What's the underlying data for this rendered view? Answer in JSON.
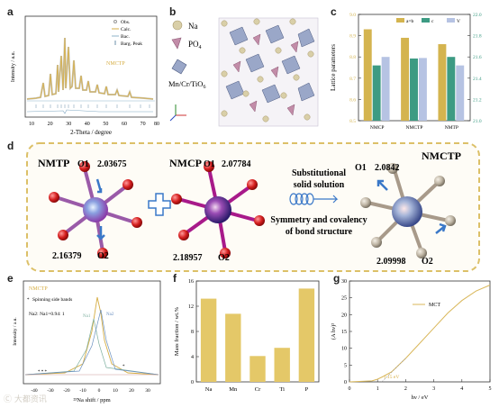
{
  "panels": {
    "a": "a",
    "b": "b",
    "c": "c",
    "d": "d",
    "e": "e",
    "f": "f",
    "g": "g"
  },
  "watermark": "Ⓒ 大都资讯",
  "panel_a": {
    "ylabel": "Intensity / a.u.",
    "xlabel": "2-Theta / degree",
    "legend": [
      "Obs.",
      "Calc.",
      "Bac.",
      "Barg. Peak"
    ],
    "sample": "NMCTP",
    "xticks": [
      "10",
      "20",
      "30",
      "40",
      "50",
      "60",
      "70",
      "80"
    ]
  },
  "panel_b": {
    "legend": [
      {
        "label": "Na",
        "sub": ""
      },
      {
        "label": "PO",
        "sub": "4"
      },
      {
        "label": "Mn/Cr/TiO",
        "sub": "6"
      }
    ]
  },
  "panel_c": {
    "ylabel": "Lattice parameters",
    "legend": [
      "a=b",
      "c",
      "V"
    ],
    "colors": {
      "ab": "#d4b44f",
      "c": "#3d9b83",
      "V": "#b6c3e3"
    }
  },
  "panel_d": {
    "nmtp": {
      "title": "NMTP",
      "o1": "O1",
      "o1_val": "2.03675",
      "o2": "O2",
      "o2_val": "2.16379"
    },
    "nmcp": {
      "title": "NMCP",
      "o1": "O1",
      "o1_val": "2.07784",
      "o2": "O2",
      "o2_val": "2.18957"
    },
    "nmctp": {
      "title": "NMCTP",
      "o1": "O1",
      "o1_val": "2.0842",
      "o2": "O2",
      "o2_val": "2.09998"
    },
    "text1": "Substitutional",
    "text2": "solid solution",
    "text3": "Symmetry and covalency",
    "text4": "of bond structure"
  },
  "panel_e": {
    "sample": "NMCTP",
    "note1": "Spinning side bands",
    "note2": "Na2: Na1=0.94: 1",
    "na1": "Na1",
    "na2": "Na2",
    "ylabel": "Intensity / a.u.",
    "xlabel": "²³Na shift / ppm",
    "xticks": [
      "-40",
      "-30",
      "-20",
      "-10",
      "0",
      "10",
      "20",
      "30"
    ]
  },
  "chart_data": [
    {
      "type": "bar",
      "panel": "c",
      "title": "",
      "xlabel": "",
      "ylabel": "Lattice parameters",
      "categories": [
        "NMCP",
        "NMCTP",
        "NMTP"
      ],
      "series": [
        {
          "name": "a=b",
          "axis": "left",
          "values": [
            8.93,
            8.89,
            8.86
          ]
        },
        {
          "name": "c",
          "axis": "right",
          "values": [
            21.52,
            21.585,
            21.6
          ]
        },
        {
          "name": "V",
          "axis": "right",
          "values": [
            21.6,
            21.59,
            21.52
          ]
        }
      ],
      "ylim": [
        8.5,
        9.0
      ],
      "y2lim": [
        21.0,
        22.0
      ],
      "yticks": [
        "8.5",
        "8.6",
        "8.7",
        "8.8",
        "8.9",
        "9.0"
      ],
      "y2ticks": [
        "21.0",
        "21.2",
        "21.4",
        "21.6",
        "21.8",
        "22.0"
      ],
      "legend_position": "top"
    },
    {
      "type": "bar",
      "panel": "f",
      "title": "",
      "xlabel": "",
      "ylabel": "Mass fraction / wt.%",
      "categories": [
        "Na",
        "Mn",
        "Cr",
        "Ti",
        "P"
      ],
      "values": [
        13.2,
        10.8,
        4.1,
        5.4,
        14.8
      ],
      "ylim": [
        0,
        16
      ],
      "yticks": [
        "0",
        "4",
        "8",
        "12",
        "16"
      ],
      "color": "#e4c868"
    },
    {
      "type": "line",
      "panel": "g",
      "title": "",
      "xlabel": "hν / eV",
      "ylabel": "(A hν)²",
      "series": [
        {
          "name": "MCT",
          "x": [
            0,
            0.8,
            1.0,
            1.2,
            1.5,
            2.0,
            2.5,
            3.0,
            3.5,
            4.0,
            4.5,
            5.0
          ],
          "y": [
            0,
            0.3,
            0.8,
            1.6,
            3.0,
            7.0,
            11.5,
            16.0,
            20.5,
            24.2,
            27.0,
            28.8
          ]
        }
      ],
      "xlim": [
        0,
        5
      ],
      "ylim": [
        0,
        30
      ],
      "xticks": [
        "0",
        "1",
        "2",
        "3",
        "4",
        "5"
      ],
      "yticks": [
        "0",
        "5",
        "10",
        "15",
        "20",
        "25",
        "30"
      ],
      "annotation": "1.15 eV",
      "color": "#d9b75a"
    }
  ]
}
